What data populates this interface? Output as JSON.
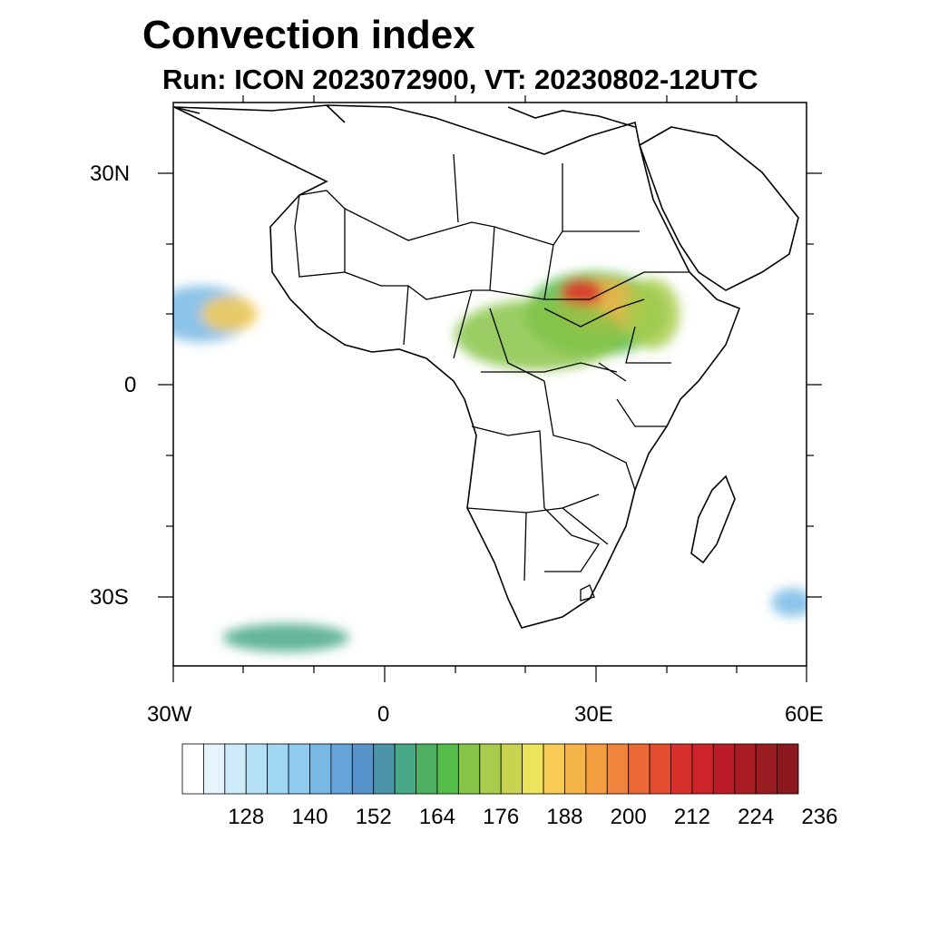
{
  "title": "Convection index",
  "subtitle": "Run: ICON 2023072900,  VT: 20230802-12UTC",
  "map": {
    "lat_labels": [
      "30N",
      "0",
      "30S"
    ],
    "lon_labels": [
      "30W",
      "0",
      "30E",
      "60E"
    ],
    "lon_range": [
      -30,
      60
    ],
    "lat_range": [
      -40,
      40
    ]
  },
  "colorbar": {
    "colors": [
      "#ffffff",
      "#e6f4fc",
      "#cceaf8",
      "#b4e0f6",
      "#a0d8f4",
      "#8ecbee",
      "#78b8e4",
      "#64a4d8",
      "#5894cc",
      "#4c94a8",
      "#48a888",
      "#4cb060",
      "#54bc48",
      "#88c448",
      "#a8cc4c",
      "#c8d450",
      "#ece45c",
      "#f8cc54",
      "#f4b448",
      "#f49c40",
      "#f0843c",
      "#ec6834",
      "#e44c30",
      "#d8302c",
      "#cc2428",
      "#bc1c28",
      "#aa1c24",
      "#981c20",
      "#8c1820"
    ],
    "labels": [
      "128",
      "140",
      "152",
      "164",
      "176",
      "188",
      "200",
      "212",
      "224",
      "236"
    ]
  },
  "fields": [
    {
      "name": "sahel-band",
      "lon": 30,
      "lat": 10,
      "rx": 10,
      "ry": 6,
      "color": "#54bc48"
    },
    {
      "name": "sahel-core",
      "lon": 31,
      "lat": 11,
      "rx": 6,
      "ry": 4,
      "color": "#f4b448"
    },
    {
      "name": "sahel-peak",
      "lon": 28,
      "lat": 13,
      "rx": 3,
      "ry": 2,
      "color": "#d8302c"
    },
    {
      "name": "central-africa",
      "lon": 22,
      "lat": 7,
      "rx": 12,
      "ry": 5,
      "color": "#88c448"
    },
    {
      "name": "ethiopia",
      "lon": 38,
      "lat": 10,
      "rx": 4,
      "ry": 5,
      "color": "#a8cc4c"
    },
    {
      "name": "west-atlantic",
      "lon": -26,
      "lat": 10,
      "rx": 7,
      "ry": 4,
      "color": "#78b8e4"
    },
    {
      "name": "west-core",
      "lon": -22,
      "lat": 10,
      "rx": 4,
      "ry": 2.5,
      "color": "#f8cc54"
    },
    {
      "name": "south-atlantic-band",
      "lon": -14,
      "lat": -36,
      "rx": 9,
      "ry": 2,
      "color": "#48a888"
    },
    {
      "name": "madagascar-east",
      "lon": 58,
      "lat": -31,
      "rx": 3,
      "ry": 2,
      "color": "#78b8e4"
    }
  ]
}
